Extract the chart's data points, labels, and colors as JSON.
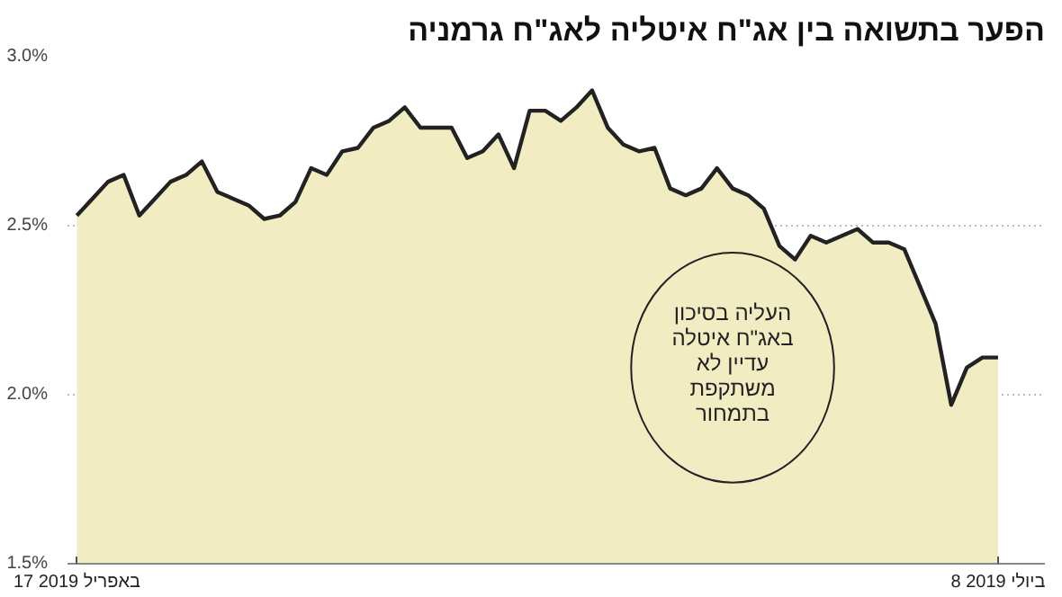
{
  "chart_data": {
    "type": "area",
    "title": "הפער בתשואה בין אג\"ח איטליה לאג\"ח גרמניה",
    "categories": [
      "17 באפריל 2019",
      null,
      null,
      null,
      null,
      null,
      null,
      null,
      null,
      null,
      null,
      null,
      null,
      null,
      null,
      null,
      null,
      null,
      null,
      null,
      null,
      null,
      null,
      null,
      null,
      null,
      null,
      null,
      null,
      null,
      null,
      null,
      null,
      null,
      null,
      null,
      null,
      null,
      null,
      null,
      null,
      null,
      null,
      null,
      null,
      null,
      null,
      null,
      null,
      null,
      null,
      null,
      null,
      null,
      null,
      null,
      null,
      null,
      null,
      "8 ביולי 2019"
    ],
    "series": [
      {
        "color": "#222222",
        "values": [
          2.53,
          2.58,
          2.63,
          2.65,
          2.53,
          2.58,
          2.63,
          2.65,
          2.69,
          2.6,
          2.58,
          2.56,
          2.52,
          2.53,
          2.57,
          2.67,
          2.65,
          2.72,
          2.73,
          2.79,
          2.81,
          2.85,
          2.79,
          2.79,
          2.79,
          2.7,
          2.72,
          2.77,
          2.67,
          2.84,
          2.84,
          2.81,
          2.85,
          2.9,
          2.79,
          2.74,
          2.72,
          2.73,
          2.61,
          2.59,
          2.61,
          2.67,
          2.61,
          2.59,
          2.55,
          2.44,
          2.4,
          2.47,
          2.45,
          2.47,
          2.49,
          2.45,
          2.45,
          2.43,
          2.32,
          2.21,
          1.97,
          2.08,
          2.11,
          2.11
        ]
      }
    ],
    "ylim": [
      1.5,
      3.0
    ],
    "yticks": [
      {
        "value": 1.5,
        "label": "1.5%"
      },
      {
        "value": 2.0,
        "label": "2.0%"
      },
      {
        "value": 2.5,
        "label": "2.5%"
      },
      {
        "value": 3.0,
        "label": "3.0%"
      }
    ],
    "grid": "y",
    "annotations": [
      "העליה בסיכון\nבאג\"ח איטלה\nעדיין לא\nמשתקפת\nבתמחור"
    ]
  }
}
